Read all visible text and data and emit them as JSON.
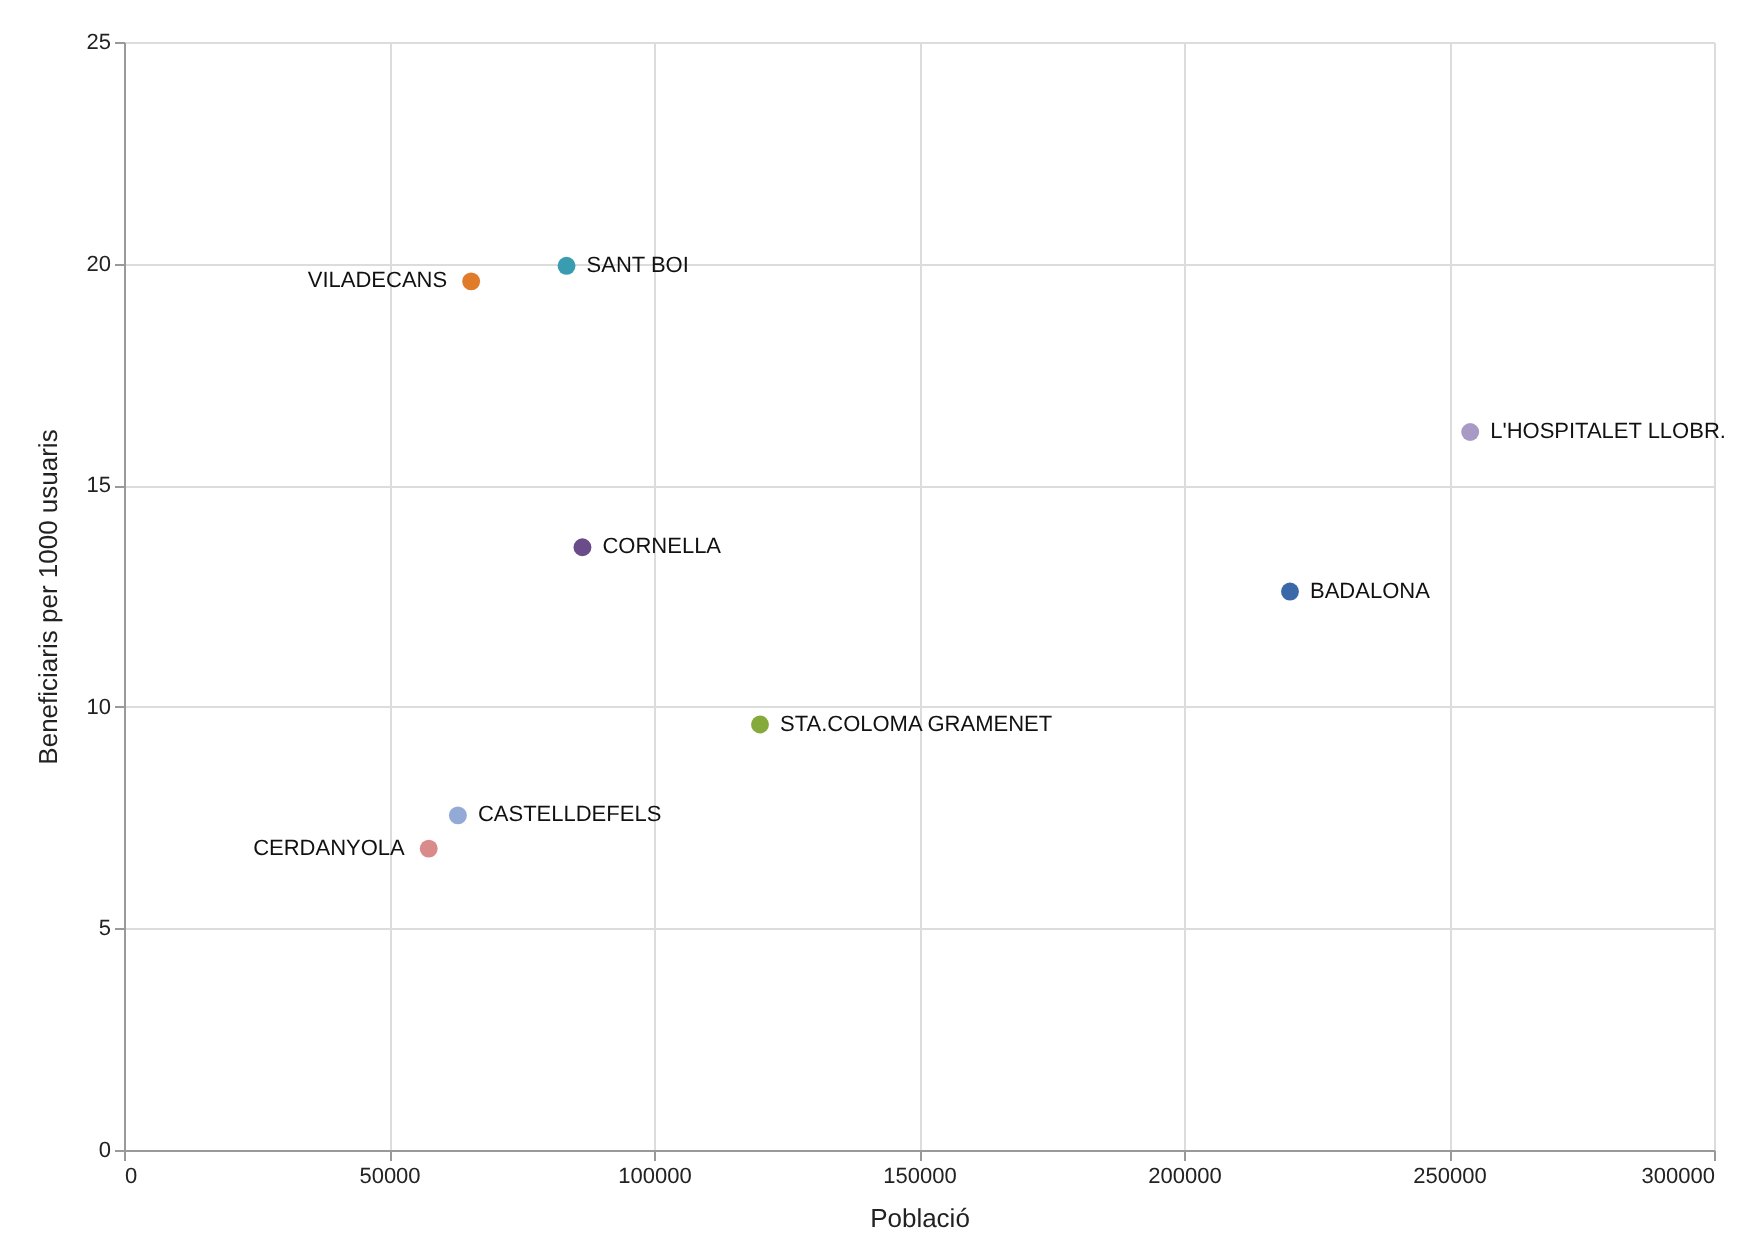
{
  "chart_data": {
    "type": "scatter",
    "xlabel": "Població",
    "ylabel": "Beneficiaris per 1000 usuaris",
    "xlim": [
      0,
      300000
    ],
    "xticks": [
      0,
      50000,
      100000,
      150000,
      200000,
      250000,
      300000
    ],
    "ylim": [
      0,
      25
    ],
    "yticks": [
      0,
      5,
      10,
      15,
      20,
      25
    ],
    "grid": true,
    "marker": "circle",
    "series": [
      {
        "name": "VILADECANS",
        "color": "#e07b2a",
        "x": [
          65500
        ],
        "values": [
          19.6
        ]
      },
      {
        "name": "SANT BOI",
        "color": "#3a9cb0",
        "x": [
          83500
        ],
        "values": [
          19.95
        ]
      },
      {
        "name": "L'HOSPITALET LLOBR.",
        "color": "#a89ac4",
        "x": [
          254000
        ],
        "values": [
          16.2
        ]
      },
      {
        "name": "CORNELLA",
        "color": "#6a4c8a",
        "x": [
          86500
        ],
        "values": [
          13.6
        ]
      },
      {
        "name": "BADALONA",
        "color": "#3a68a8",
        "x": [
          220000
        ],
        "values": [
          12.6
        ]
      },
      {
        "name": "STA.COLOMA GRAMENET",
        "color": "#86a93c",
        "x": [
          120000
        ],
        "values": [
          9.6
        ]
      },
      {
        "name": "CASTELLDEFELS",
        "color": "#93a9d6",
        "x": [
          63000
        ],
        "values": [
          7.55
        ]
      },
      {
        "name": "CERDANYOLA",
        "color": "#d98b8b",
        "x": [
          57500
        ],
        "values": [
          6.8
        ]
      }
    ]
  }
}
